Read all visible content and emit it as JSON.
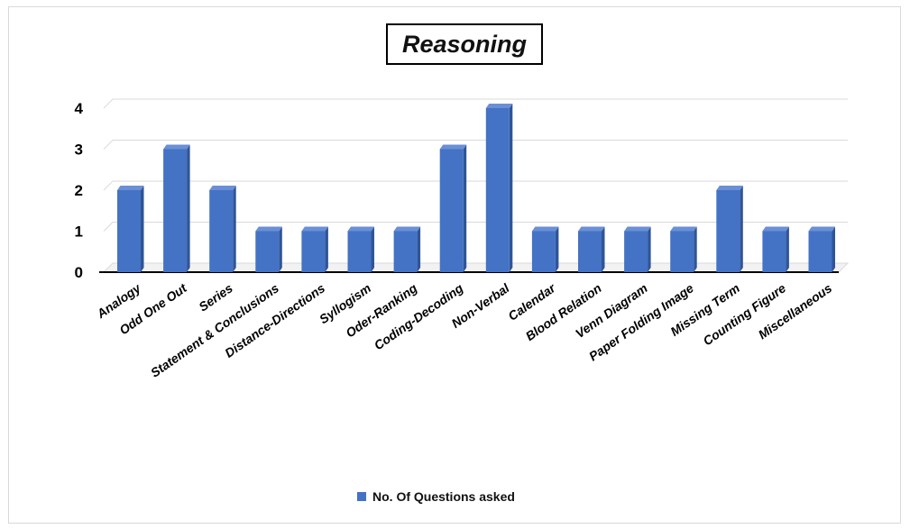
{
  "chart_data": {
    "type": "bar",
    "title": "Reasoning",
    "xlabel": "",
    "ylabel": "",
    "categories": [
      "Analogy",
      "Odd One Out",
      "Series",
      "Statement & Conclusions",
      "Distance-Directions",
      "Syllogism",
      "Oder-Ranking",
      "Coding-Decoding",
      "Non-Verbal",
      "Calendar",
      "Blood Relation",
      "Venn Diagram",
      "Paper Folding Image",
      "Missing Term",
      "Counting Figure",
      "Miscellaneous"
    ],
    "series": [
      {
        "name": "No. Of Questions asked",
        "values": [
          2,
          3,
          2,
          1,
          1,
          1,
          1,
          3,
          4,
          1,
          1,
          1,
          1,
          2,
          1,
          1
        ]
      }
    ],
    "ylim": [
      0,
      4
    ],
    "yticks": [
      "0",
      "1",
      "2",
      "3",
      "4"
    ],
    "grid": true,
    "legend_position": "bottom",
    "colors": {
      "bar_front": "#4472c4",
      "bar_side": "#2f5597",
      "bar_top": "#6a8fd6",
      "grid": "#d9d9d9"
    }
  }
}
